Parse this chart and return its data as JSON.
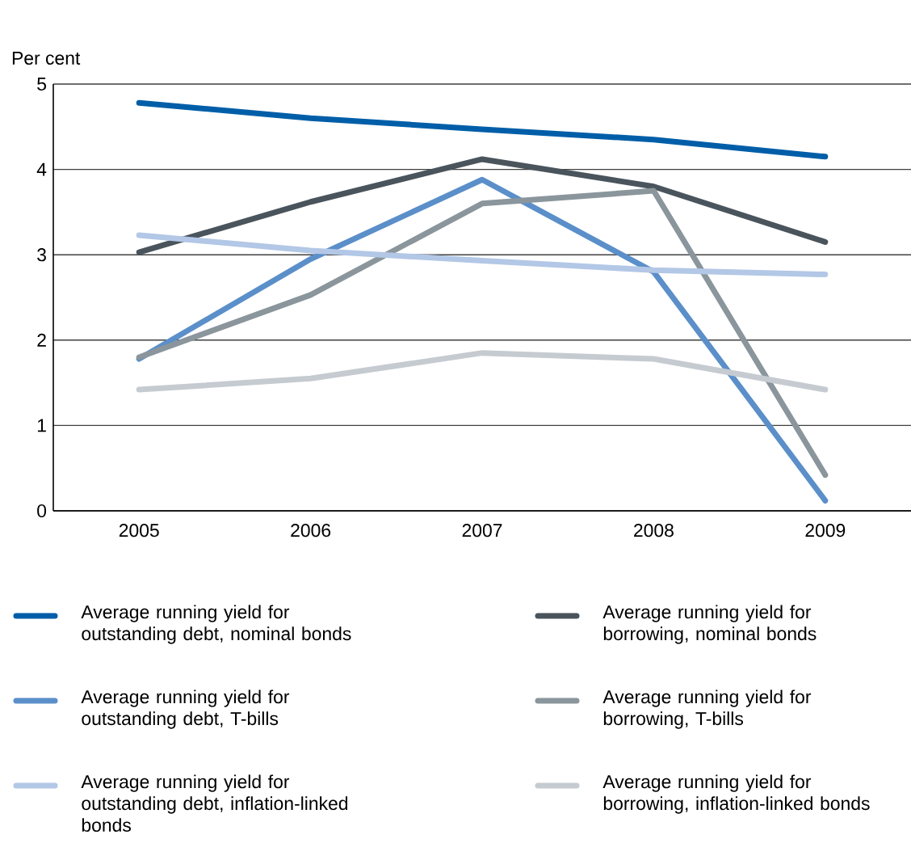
{
  "chart_data": {
    "type": "line",
    "ylabel": "Per cent",
    "categories": [
      "2005",
      "2006",
      "2007",
      "2008",
      "2009"
    ],
    "series": [
      {
        "name": "Average running yield for outstanding debt, nominal bonds",
        "color": "#005ea8",
        "values": [
          4.78,
          4.6,
          4.47,
          4.35,
          4.15
        ]
      },
      {
        "name": "Average running yield for borrowing, nominal bonds",
        "color": "#4a545c",
        "values": [
          3.03,
          3.62,
          4.12,
          3.8,
          3.15
        ]
      },
      {
        "name": "Average running yield for outstanding debt, T-bills",
        "color": "#5b8fc9",
        "values": [
          1.78,
          2.95,
          3.88,
          2.8,
          0.12
        ]
      },
      {
        "name": "Average running yield for borrowing, T-bills",
        "color": "#8a959c",
        "values": [
          1.8,
          2.53,
          3.6,
          3.75,
          0.42
        ]
      },
      {
        "name": "Average running yield for outstanding debt, inflation-linked bonds",
        "color": "#b3c7e6",
        "values": [
          3.23,
          3.05,
          2.93,
          2.82,
          2.77
        ]
      },
      {
        "name": "Average running yield for borrowing, inflation-linked bonds",
        "color": "#c5cbd0",
        "values": [
          1.42,
          1.55,
          1.85,
          1.78,
          1.42
        ]
      }
    ],
    "ylim": [
      0,
      5
    ],
    "yticks": [
      0,
      1,
      2,
      3,
      4,
      5
    ],
    "grid": "y",
    "legend": "bottom",
    "marker": "none",
    "line_style": "solid"
  }
}
